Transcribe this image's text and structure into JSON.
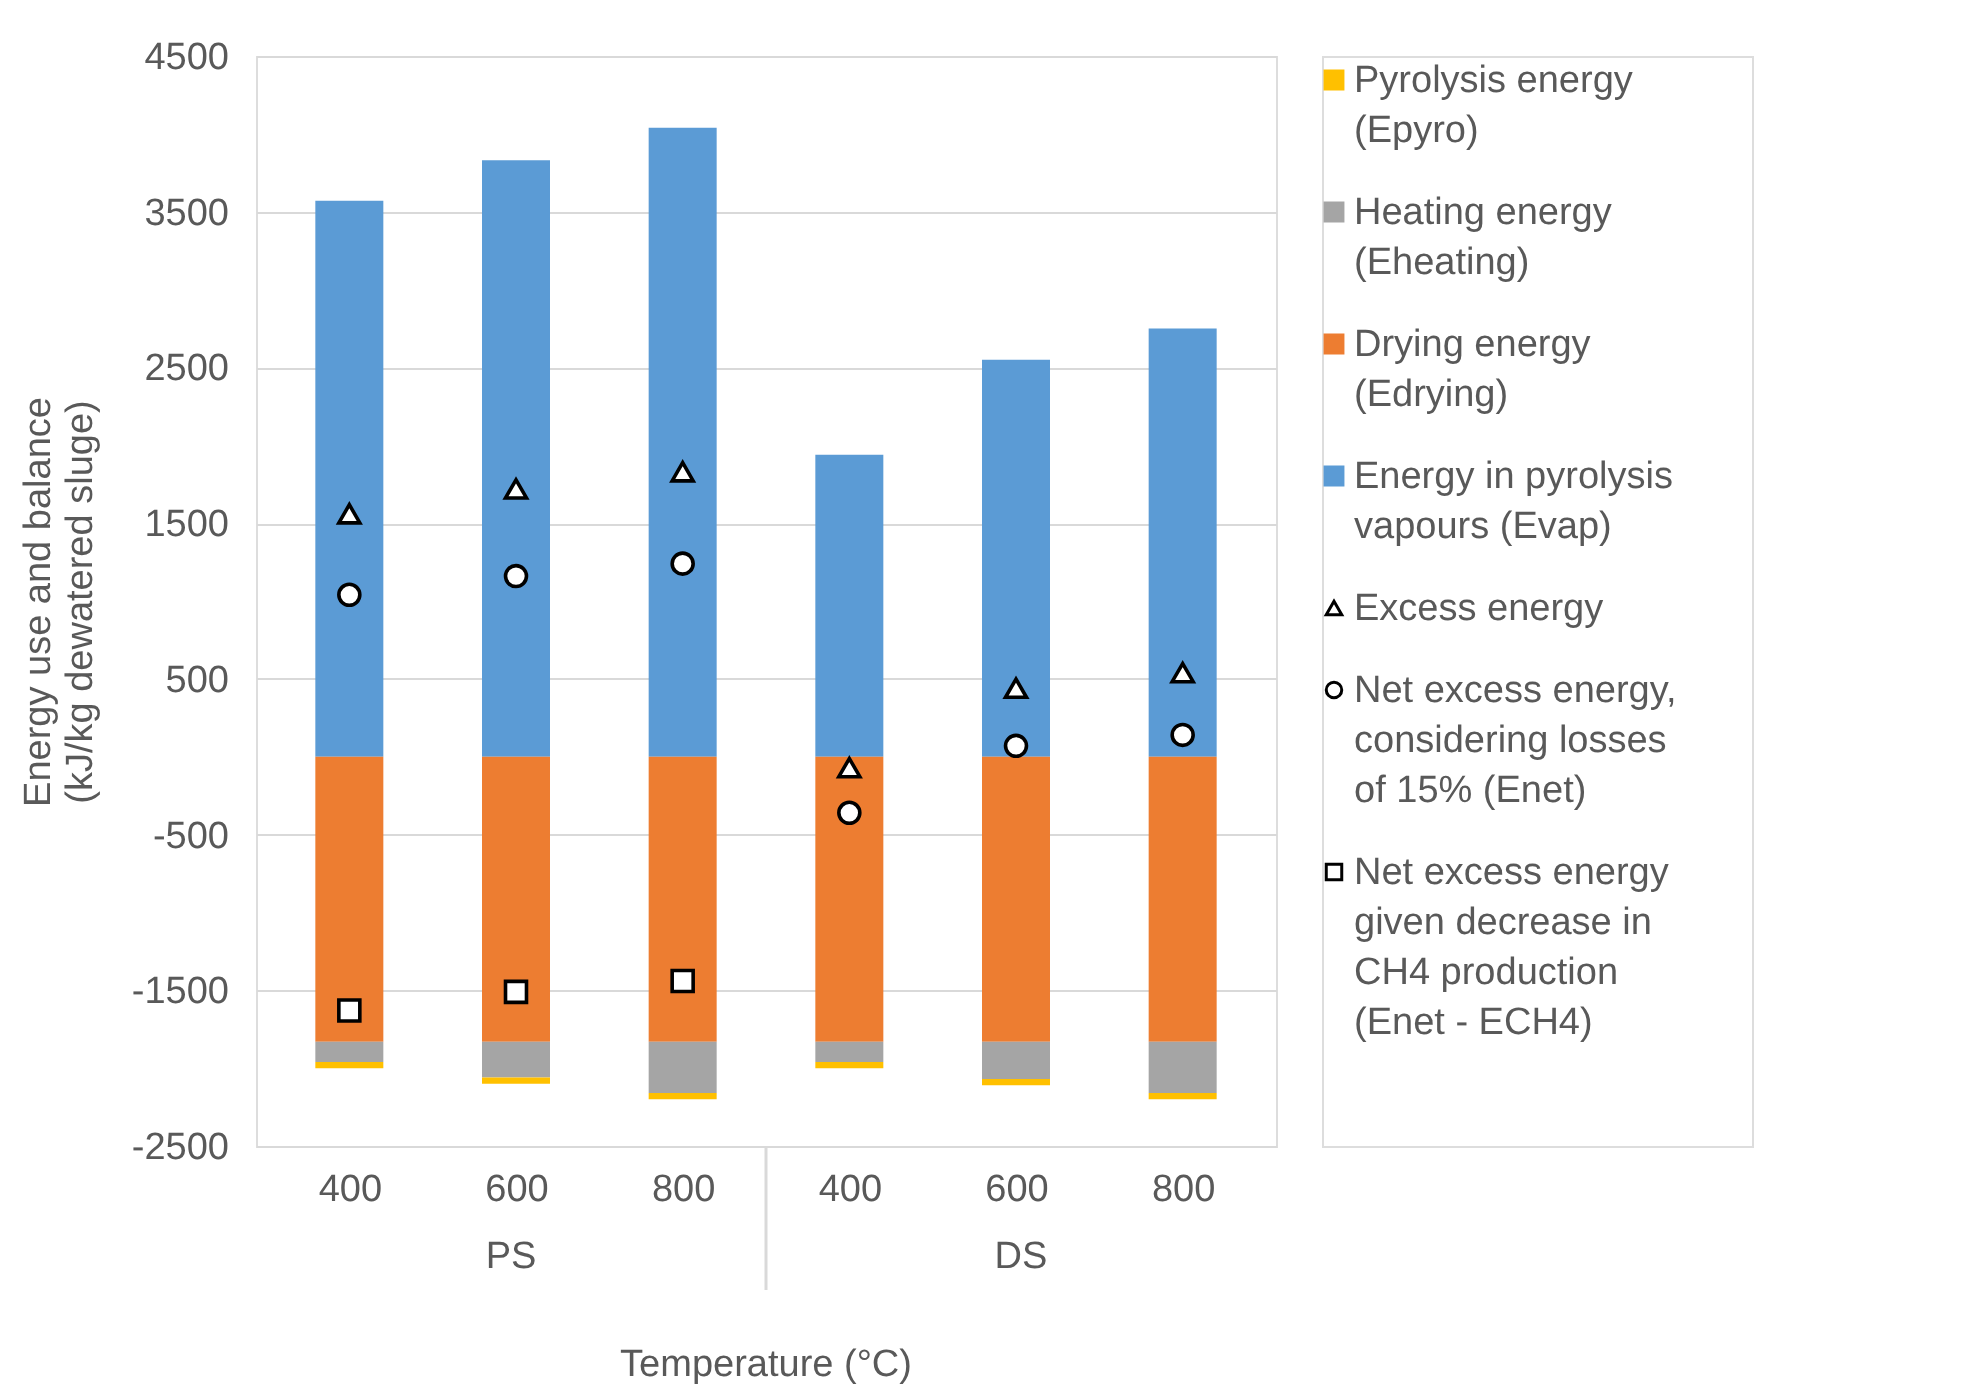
{
  "chart_data": {
    "type": "bar",
    "stacked": true,
    "xlabel": "Temperature (°C)",
    "ylabel": "Energy use and balance (kJ/kg dewatered sluge)",
    "categories": [
      "400",
      "600",
      "800",
      "400",
      "600",
      "800"
    ],
    "annotations": [
      "PS",
      "DS"
    ],
    "ylim": [
      -2500,
      4500
    ],
    "yticks": [
      -2500,
      -1500,
      -500,
      500,
      1500,
      2500,
      3500,
      4500
    ],
    "grid": "y",
    "legend": "right",
    "series": [
      {
        "name": "Energy in pyrolysis vapours (Evap)",
        "color": "#5b9bd5",
        "values": [
          3570,
          3830,
          4040,
          1940,
          2550,
          2750
        ]
      },
      {
        "name": "Drying energy (Edrying)",
        "color": "#ed7d31",
        "values": [
          -1830,
          -1830,
          -1830,
          -1830,
          -1830,
          -1830
        ]
      },
      {
        "name": "Heating energy (Eheating)",
        "color": "#a5a5a5",
        "values": [
          -130,
          -230,
          -330,
          -130,
          -240,
          -330
        ]
      },
      {
        "name": "Pyrolysis energy (Epyro)",
        "color": "#ffc000",
        "values": [
          -40,
          -40,
          -40,
          -40,
          -40,
          -40
        ]
      },
      {
        "name": "Excess energy",
        "type": "scatter",
        "marker": "triangle",
        "color": "#ffffff",
        "values": [
          1560,
          1720,
          1830,
          -70,
          440,
          540
        ]
      },
      {
        "name": "Net excess energy, considering losses of 15% (Enet)",
        "type": "scatter",
        "marker": "circle",
        "color": "#ffffff",
        "values": [
          1040,
          1160,
          1240,
          -360,
          70,
          140
        ]
      },
      {
        "name": "Net excess energy given decrease in CH4 production (Enet - ECH4)",
        "type": "scatter",
        "marker": "square",
        "color": "#ffffff",
        "values": [
          -1630,
          -1510,
          -1440,
          null,
          null,
          null
        ]
      }
    ]
  }
}
